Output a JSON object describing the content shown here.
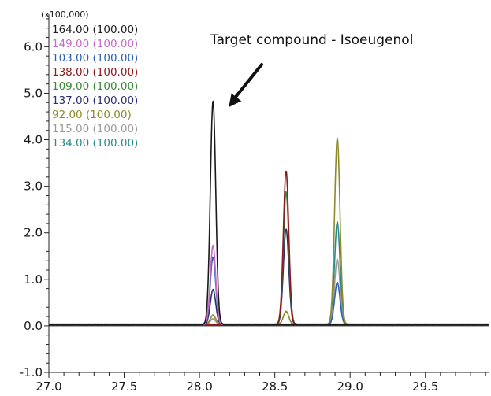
{
  "chart_data": {
    "type": "line",
    "title": "",
    "xlabel": "",
    "ylabel": "",
    "y_scale_label": "(x100,000)",
    "xlim": [
      27.0,
      29.92
    ],
    "ylim": [
      -1.0,
      6.7
    ],
    "x_ticks": [
      27.0,
      27.5,
      28.0,
      28.5,
      29.0,
      29.5
    ],
    "x_tick_labels": [
      "27.0",
      "27.5",
      "28.0",
      "28.5",
      "29.0",
      "29.5"
    ],
    "y_ticks": [
      -1.0,
      0.0,
      1.0,
      2.0,
      3.0,
      4.0,
      5.0,
      6.0
    ],
    "y_tick_labels": [
      "-1.0",
      "0.0",
      "1.0",
      "2.0",
      "3.0",
      "4.0",
      "5.0",
      "6.0"
    ],
    "x_minor_step": 0.1,
    "y_minor_step": 0.2,
    "grid": false,
    "legend_position": "top-left",
    "baseline": 0.03,
    "annotation": {
      "text": "Target compound - Isoeugenol",
      "target_x": 28.1,
      "target_y": 4.7
    },
    "series": [
      {
        "name": "164.00 (100.00)",
        "color": "#1a1a1a",
        "peaks": [
          {
            "x": 28.09,
            "h": 4.8
          }
        ]
      },
      {
        "name": "149.00 (100.00)",
        "color": "#c86ac8",
        "peaks": [
          {
            "x": 28.09,
            "h": 1.7
          }
        ]
      },
      {
        "name": "103.00 (100.00)",
        "color": "#2e62b0",
        "peaks": [
          {
            "x": 28.09,
            "h": 1.45
          },
          {
            "x": 28.915,
            "h": 0.9
          }
        ]
      },
      {
        "name": "138.00 (100.00)",
        "color": "#8b1a1a",
        "peaks": [
          {
            "x": 28.575,
            "h": 3.3
          }
        ]
      },
      {
        "name": "109.00 (100.00)",
        "color": "#3a8a3a",
        "peaks": [
          {
            "x": 28.575,
            "h": 2.85
          }
        ]
      },
      {
        "name": "137.00 (100.00)",
        "color": "#2b2f6e",
        "peaks": [
          {
            "x": 28.09,
            "h": 0.75
          },
          {
            "x": 28.575,
            "h": 2.05
          }
        ]
      },
      {
        "name": "92.00 (100.00)",
        "color": "#8e8a2c",
        "peaks": [
          {
            "x": 28.09,
            "h": 0.2
          },
          {
            "x": 28.575,
            "h": 0.28
          },
          {
            "x": 28.915,
            "h": 4.0
          }
        ]
      },
      {
        "name": "115.00 (100.00)",
        "color": "#9a9a9a",
        "peaks": [
          {
            "x": 28.09,
            "h": 0.12
          },
          {
            "x": 28.915,
            "h": 1.4
          }
        ]
      },
      {
        "name": "134.00 (100.00)",
        "color": "#2a8a8a",
        "peaks": [
          {
            "x": 28.915,
            "h": 2.2
          }
        ]
      }
    ]
  }
}
